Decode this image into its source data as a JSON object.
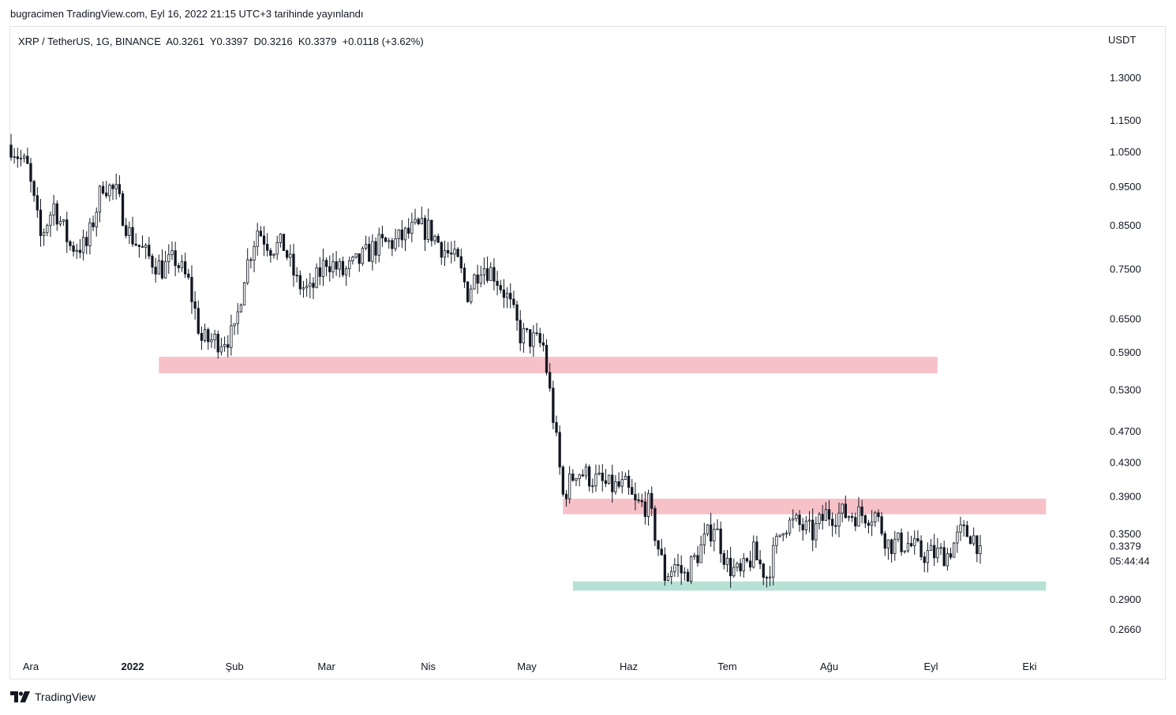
{
  "header": {
    "published": "bugracimen TradingView.com, Eyl 16, 2022 21:15 UTC+3 tarihinde yayınlandı"
  },
  "legend": {
    "symbol": "XRP / TetherUS, 1G, BINANCE",
    "open": "A0.3261",
    "high": "Y0.3397",
    "low": "D0.3216",
    "close": "K0.3379",
    "change": "+0.0118 (+3.62%)"
  },
  "footer": {
    "brand": "TradingView",
    "logo_icon": "tradingview-logo-icon"
  },
  "chart_data": {
    "type": "candlestick",
    "y_scale": "log",
    "currency_label": "USDT",
    "y_ticks": [
      "1.3000",
      "1.1500",
      "1.0500",
      "0.9500",
      "0.8500",
      "0.7500",
      "0.6500",
      "0.5900",
      "0.5300",
      "0.4700",
      "0.4300",
      "0.3900",
      "0.3500",
      "0.2900",
      "0.2660"
    ],
    "y_tick_values": [
      1.3,
      1.15,
      1.05,
      0.95,
      0.85,
      0.75,
      0.65,
      0.59,
      0.53,
      0.47,
      0.43,
      0.39,
      0.35,
      0.29,
      0.266
    ],
    "last_price": {
      "label": "0.3379",
      "value": 0.3379,
      "countdown": "05:44:44"
    },
    "x_ticks": [
      {
        "label": "Ara",
        "date": "2021-12-01"
      },
      {
        "label": "2022",
        "date": "2022-01-01",
        "bold": true
      },
      {
        "label": "Şub",
        "date": "2022-02-01"
      },
      {
        "label": "Mar",
        "date": "2022-03-01"
      },
      {
        "label": "Nis",
        "date": "2022-04-01"
      },
      {
        "label": "May",
        "date": "2022-05-01"
      },
      {
        "label": "Haz",
        "date": "2022-06-01"
      },
      {
        "label": "Tem",
        "date": "2022-07-01"
      },
      {
        "label": "Ağu",
        "date": "2022-08-01"
      },
      {
        "label": "Eyl",
        "date": "2022-09-01"
      },
      {
        "label": "Eki",
        "date": "2022-10-01"
      }
    ],
    "start_date": "2021-11-25",
    "end_date": "2022-09-16",
    "close_path": [
      [
        "2021-11-25",
        1.07
      ],
      [
        "2021-11-30",
        1.0
      ],
      [
        "2021-12-04",
        0.82
      ],
      [
        "2021-12-08",
        0.9
      ],
      [
        "2021-12-13",
        0.8
      ],
      [
        "2021-12-18",
        0.8
      ],
      [
        "2021-12-23",
        0.96
      ],
      [
        "2021-12-27",
        0.93
      ],
      [
        "2021-12-31",
        0.83
      ],
      [
        "2022-01-05",
        0.78
      ],
      [
        "2022-01-10",
        0.75
      ],
      [
        "2022-01-14",
        0.77
      ],
      [
        "2022-01-18",
        0.72
      ],
      [
        "2022-01-22",
        0.61
      ],
      [
        "2022-01-27",
        0.61
      ],
      [
        "2022-02-01",
        0.62
      ],
      [
        "2022-02-04",
        0.74
      ],
      [
        "2022-02-08",
        0.84
      ],
      [
        "2022-02-12",
        0.8
      ],
      [
        "2022-02-16",
        0.8
      ],
      [
        "2022-02-20",
        0.72
      ],
      [
        "2022-02-24",
        0.7
      ],
      [
        "2022-03-01",
        0.77
      ],
      [
        "2022-03-06",
        0.74
      ],
      [
        "2022-03-10",
        0.76
      ],
      [
        "2022-03-16",
        0.8
      ],
      [
        "2022-03-22",
        0.81
      ],
      [
        "2022-03-28",
        0.84
      ],
      [
        "2022-04-01",
        0.84
      ],
      [
        "2022-04-05",
        0.8
      ],
      [
        "2022-04-10",
        0.76
      ],
      [
        "2022-04-13",
        0.7
      ],
      [
        "2022-04-17",
        0.76
      ],
      [
        "2022-04-21",
        0.74
      ],
      [
        "2022-04-25",
        0.69
      ],
      [
        "2022-04-29",
        0.62
      ],
      [
        "2022-05-03",
        0.61
      ],
      [
        "2022-05-06",
        0.6
      ],
      [
        "2022-05-09",
        0.49
      ],
      [
        "2022-05-12",
        0.39
      ],
      [
        "2022-05-16",
        0.42
      ],
      [
        "2022-05-21",
        0.41
      ],
      [
        "2022-05-26",
        0.4
      ],
      [
        "2022-05-31",
        0.4
      ],
      [
        "2022-06-03",
        0.38
      ],
      [
        "2022-06-07",
        0.38
      ],
      [
        "2022-06-12",
        0.31
      ],
      [
        "2022-06-15",
        0.32
      ],
      [
        "2022-06-18",
        0.31
      ],
      [
        "2022-06-22",
        0.33
      ],
      [
        "2022-06-27",
        0.36
      ],
      [
        "2022-07-01",
        0.32
      ],
      [
        "2022-07-05",
        0.31
      ],
      [
        "2022-07-09",
        0.33
      ],
      [
        "2022-07-13",
        0.31
      ],
      [
        "2022-07-18",
        0.36
      ],
      [
        "2022-07-22",
        0.36
      ],
      [
        "2022-07-27",
        0.35
      ],
      [
        "2022-07-31",
        0.37
      ],
      [
        "2022-08-05",
        0.37
      ],
      [
        "2022-08-10",
        0.37
      ],
      [
        "2022-08-15",
        0.37
      ],
      [
        "2022-08-19",
        0.34
      ],
      [
        "2022-08-25",
        0.34
      ],
      [
        "2022-08-29",
        0.33
      ],
      [
        "2022-09-02",
        0.33
      ],
      [
        "2022-09-06",
        0.33
      ],
      [
        "2022-09-10",
        0.35
      ],
      [
        "2022-09-13",
        0.35
      ],
      [
        "2022-09-16",
        0.3379
      ]
    ],
    "zones": [
      {
        "type": "resistance",
        "color": "#f7c1c8",
        "from_date": "2022-01-09",
        "to_date": "2022-09-03",
        "y_low": 0.555,
        "y_high": 0.582
      },
      {
        "type": "resistance",
        "color": "#f7c1c8",
        "from_date": "2022-05-12",
        "to_date": "2022-10-06",
        "y_low": 0.37,
        "y_high": 0.387
      },
      {
        "type": "support",
        "color": "#b7e1d5",
        "from_date": "2022-05-15",
        "to_date": "2022-10-06",
        "y_low": 0.297,
        "y_high": 0.305
      }
    ],
    "colors": {
      "up": "#ffffff",
      "down": "#131722",
      "wick": "#131722",
      "grid": "#e0e3eb"
    }
  }
}
